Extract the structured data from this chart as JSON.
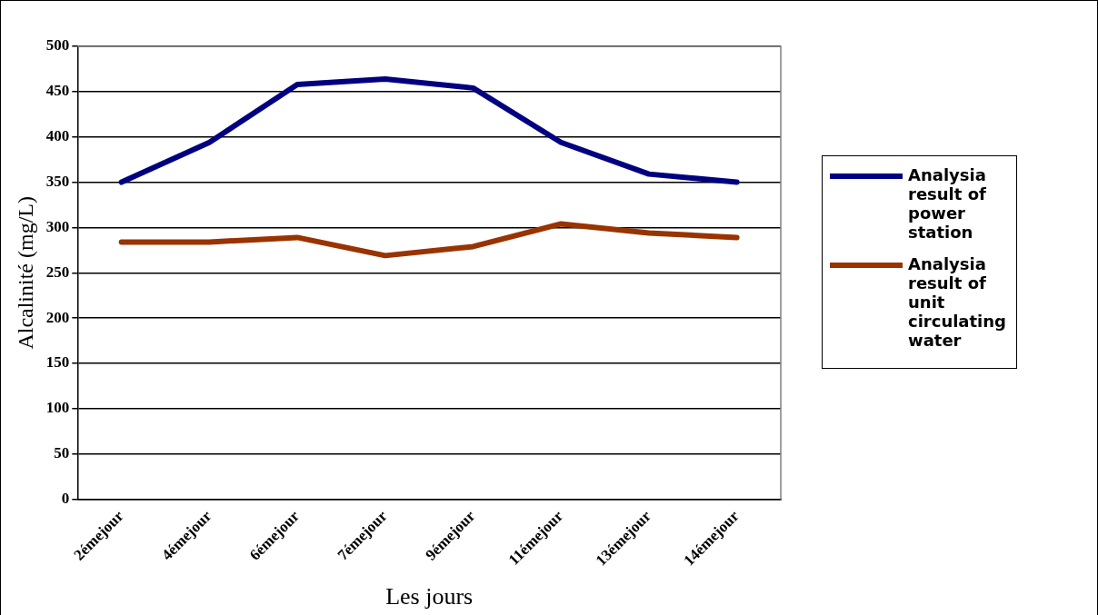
{
  "chart_data": {
    "type": "line",
    "xlabel": "Les jours",
    "ylabel": "Alcalinité (mg/L)",
    "categories": [
      "2émejour",
      "4émejour",
      "6émejour",
      "7émejour",
      "9émejour",
      "11émejour",
      "13émejour",
      "14émejour"
    ],
    "series": [
      {
        "name": "Analysia result of power station",
        "color": "#000080",
        "values": [
          350,
          394,
          458,
          464,
          454,
          394,
          359,
          350
        ]
      },
      {
        "name": "Analysia result of unit circulating water",
        "color": "#993300",
        "values": [
          284,
          284,
          289,
          269,
          279,
          304,
          294,
          289
        ]
      }
    ],
    "ylim": [
      0,
      500
    ],
    "yticks": [
      0,
      50,
      100,
      150,
      200,
      250,
      300,
      350,
      400,
      450,
      500
    ],
    "grid": "y",
    "legend": "right",
    "marker": "none",
    "line_style": "solid"
  }
}
